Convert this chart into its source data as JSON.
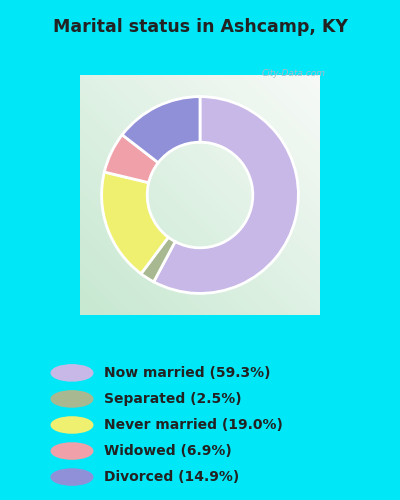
{
  "title": "Marital status in Ashcamp, KY",
  "slices": [
    {
      "label": "Now married (59.3%)",
      "value": 59.3,
      "color": "#c8b8e8"
    },
    {
      "label": "Separated (2.5%)",
      "value": 2.5,
      "color": "#a8b890"
    },
    {
      "label": "Never married (19.0%)",
      "value": 19.0,
      "color": "#f0f070"
    },
    {
      "label": "Widowed (6.9%)",
      "value": 6.9,
      "color": "#f0a0a8"
    },
    {
      "label": "Divorced (14.9%)",
      "value": 14.9,
      "color": "#9090d8"
    }
  ],
  "outer_bg": "#00e8f8",
  "chart_panel_color": "#d8eedc",
  "title_color": "#222222",
  "legend_text_color": "#222222",
  "figsize": [
    4.0,
    5.0
  ],
  "dpi": 100,
  "donut_width": 0.38,
  "startangle": 90
}
